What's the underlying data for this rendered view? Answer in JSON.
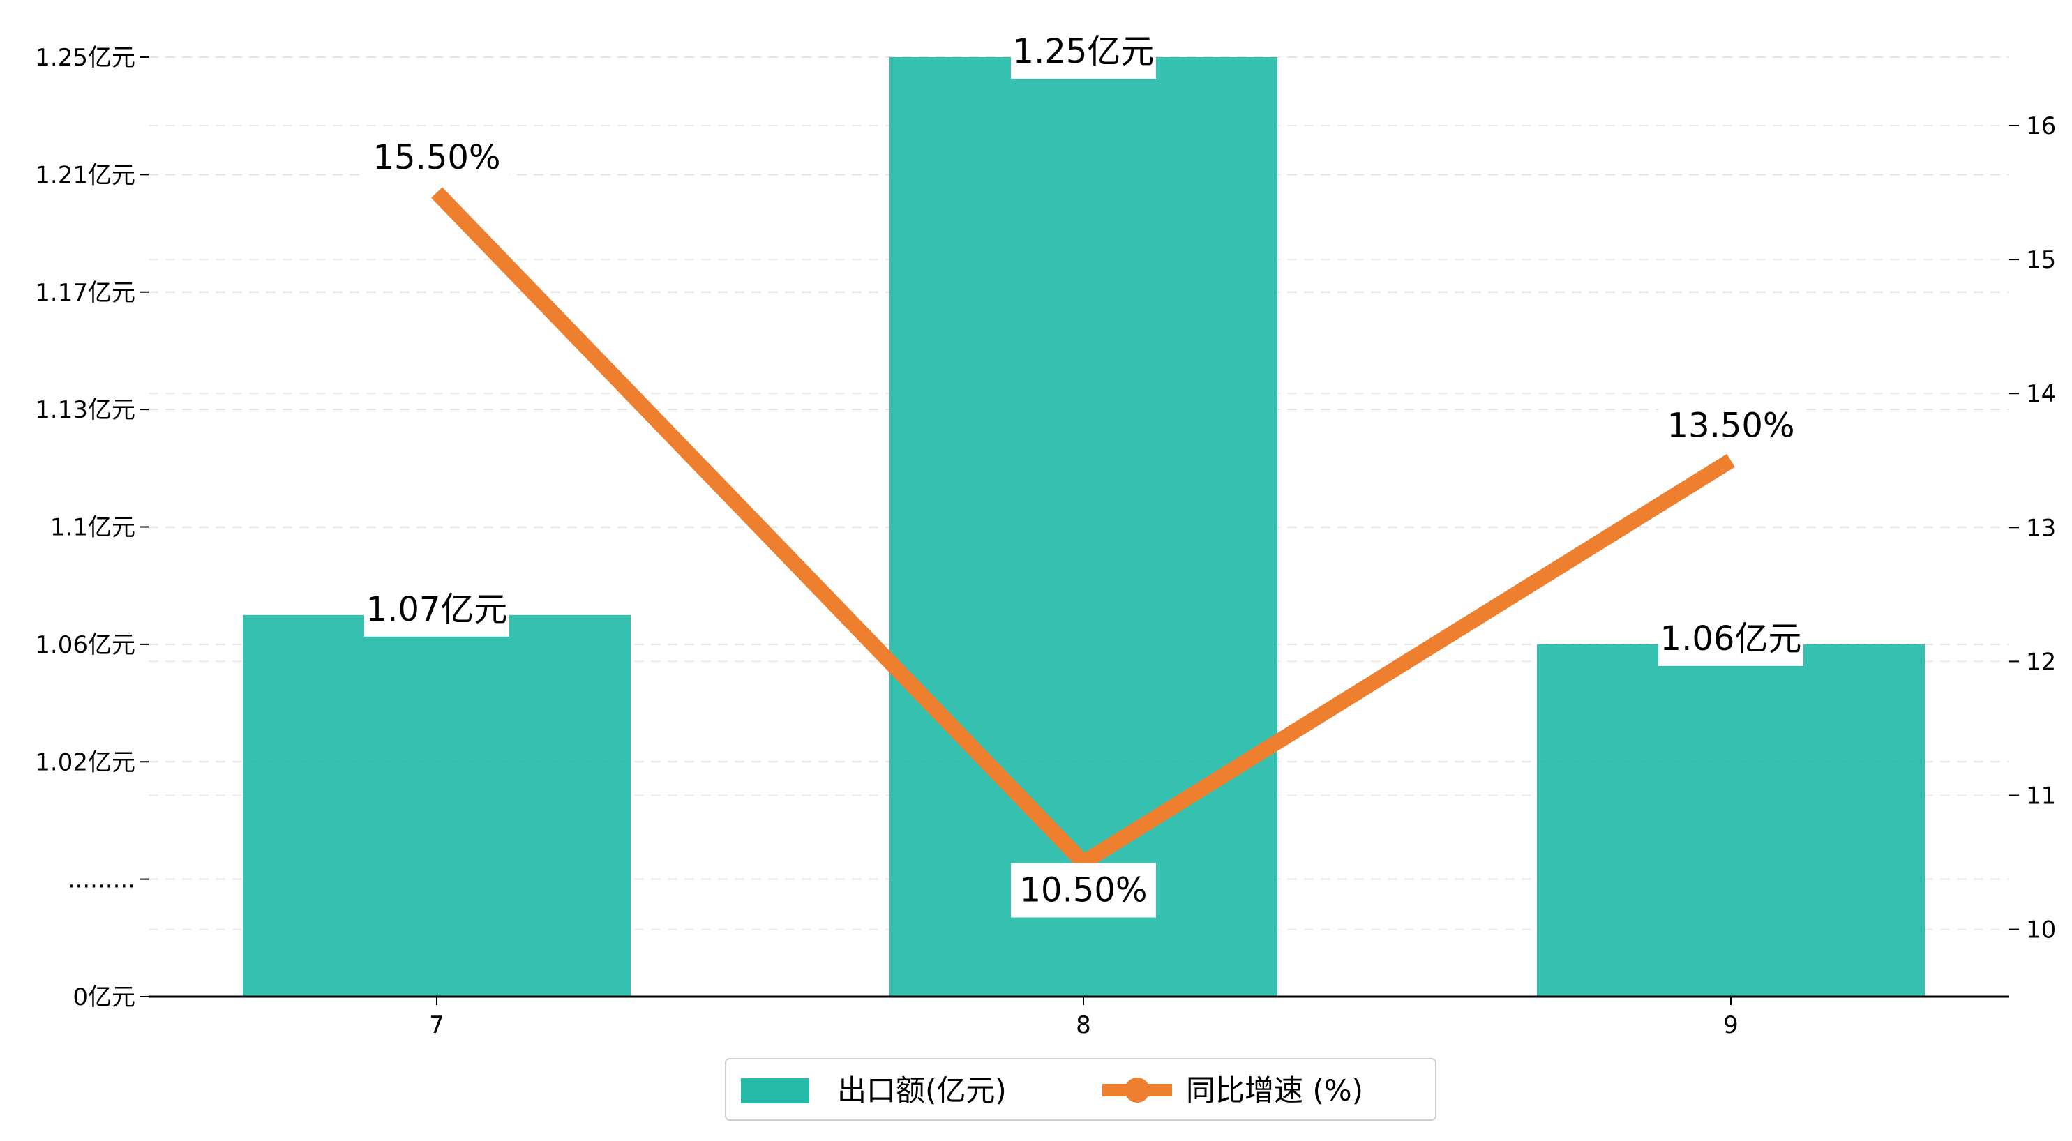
{
  "chart_data": {
    "type": "bar",
    "categories": [
      "7",
      "8",
      "9"
    ],
    "series": [
      {
        "name": "出口额(亿元)",
        "type": "bar",
        "axis": "left",
        "values": [
          1.07,
          1.25,
          1.06
        ],
        "value_labels": [
          "1.07亿元",
          "1.25亿元",
          "1.06亿元"
        ],
        "color": "#26bba9"
      },
      {
        "name": "同比增速 (%)",
        "type": "line",
        "axis": "right",
        "values": [
          15.5,
          10.5,
          13.5
        ],
        "value_labels": [
          "15.50%",
          "10.50%",
          "13.50%"
        ],
        "color": "#ed7f2f"
      }
    ],
    "left_axis": {
      "broken": true,
      "ticks": [
        {
          "label": "0亿元",
          "value": 0
        },
        {
          "label": ".........",
          "value": null
        },
        {
          "label": "1.02亿元",
          "value": 1.02
        },
        {
          "label": "1.06亿元",
          "value": 1.06
        },
        {
          "label": "1.1亿元",
          "value": 1.1
        },
        {
          "label": "1.13亿元",
          "value": 1.13
        },
        {
          "label": "1.17亿元",
          "value": 1.17
        },
        {
          "label": "1.21亿元",
          "value": 1.21
        },
        {
          "label": "1.25亿元",
          "value": 1.25
        }
      ]
    },
    "right_axis": {
      "ylim": [
        9.5,
        16.5
      ],
      "ticks": [
        10,
        11,
        12,
        13,
        14,
        15,
        16
      ]
    },
    "grid": "horizontal-dashed",
    "legend_position": "bottom-center"
  }
}
